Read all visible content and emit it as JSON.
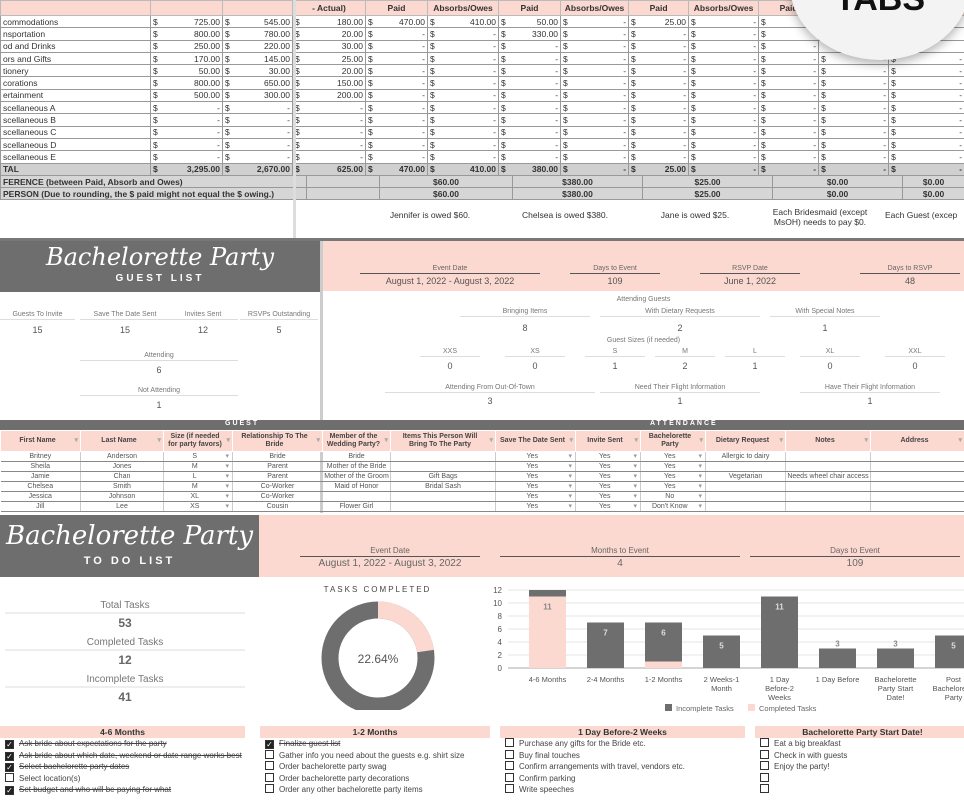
{
  "budget": {
    "headers": [
      "",
      "",
      "",
      "- Actual)",
      "Paid",
      "Absorbs/Owes",
      "Paid",
      "Absorbs/Owes",
      "Paid",
      "Absorbs/Owes",
      "Paid",
      "",
      ""
    ],
    "rows": [
      [
        "commodations",
        "725.00",
        "545.00",
        "180.00",
        "470.00",
        "410.00",
        "50.00",
        "-",
        "25.00",
        "-",
        "-",
        "",
        ""
      ],
      [
        "nsportation",
        "800.00",
        "780.00",
        "20.00",
        "-",
        "-",
        "330.00",
        "-",
        "-",
        "-",
        "-",
        "",
        ""
      ],
      [
        "od and Drinks",
        "250.00",
        "220.00",
        "30.00",
        "-",
        "-",
        "-",
        "-",
        "-",
        "-",
        "-",
        "",
        ""
      ],
      [
        "ors and Gifts",
        "170.00",
        "145.00",
        "25.00",
        "-",
        "-",
        "-",
        "-",
        "-",
        "-",
        "-",
        "-",
        "-"
      ],
      [
        "tionery",
        "50.00",
        "30.00",
        "20.00",
        "-",
        "-",
        "-",
        "-",
        "-",
        "-",
        "-",
        "-",
        "-"
      ],
      [
        "corations",
        "800.00",
        "650.00",
        "150.00",
        "-",
        "-",
        "-",
        "-",
        "-",
        "-",
        "-",
        "-",
        "-"
      ],
      [
        "ertainment",
        "500.00",
        "300.00",
        "200.00",
        "-",
        "-",
        "-",
        "-",
        "-",
        "-",
        "-",
        "-",
        "-"
      ],
      [
        "scellaneous A",
        "-",
        "-",
        "-",
        "-",
        "-",
        "-",
        "-",
        "-",
        "-",
        "-",
        "-",
        "-"
      ],
      [
        "scellaneous B",
        "-",
        "-",
        "-",
        "-",
        "-",
        "-",
        "-",
        "-",
        "-",
        "-",
        "-",
        "-"
      ],
      [
        "scellaneous C",
        "-",
        "-",
        "-",
        "-",
        "-",
        "-",
        "-",
        "-",
        "-",
        "-",
        "-",
        "-"
      ],
      [
        "scellaneous D",
        "-",
        "-",
        "-",
        "-",
        "-",
        "-",
        "-",
        "-",
        "-",
        "-",
        "-",
        "-"
      ],
      [
        "scellaneous E",
        "-",
        "-",
        "-",
        "-",
        "-",
        "-",
        "-",
        "-",
        "-",
        "-",
        "-",
        "-"
      ]
    ],
    "total": [
      "TAL",
      "3,295.00",
      "2,670.00",
      "625.00",
      "470.00",
      "410.00",
      "380.00",
      "-",
      "25.00",
      "-",
      "-",
      "-",
      "-"
    ],
    "difference": {
      "label": "FERENCE (between Paid, Absorb and Owes)",
      "values": [
        "$60.00",
        "$380.00",
        "$25.00",
        "$0.00",
        "$0.00"
      ]
    },
    "per_person": {
      "label": "PERSON (Due to rounding, the $ paid might not equal the $ owing.)",
      "values": [
        "$60.00",
        "$380.00",
        "$25.00",
        "$0.00",
        "$0.00"
      ]
    },
    "owed": [
      "Jennifer is owed $60.",
      "Chelsea is owed $380.",
      "Jane is owed $25.",
      "Each Bridesmaid (except MsOH) needs to pay $0.",
      "Each Guest (excep"
    ]
  },
  "badge": {
    "text": "TABS"
  },
  "guest_list": {
    "title": "Bachelorette Party",
    "subtitle": "GUEST LIST",
    "stats": [
      {
        "label": "Guests To Invite",
        "value": "15"
      },
      {
        "label": "Save The Date Sent",
        "value": "15"
      },
      {
        "label": "Invites Sent",
        "value": "12"
      },
      {
        "label": "RSVPs Outstanding",
        "value": "5"
      }
    ],
    "attending": {
      "label": "Attending",
      "value": "6"
    },
    "not_attending": {
      "label": "Not Attending",
      "value": "1"
    },
    "event": [
      {
        "label": "Event Date",
        "value": "August 1, 2022 - August 3, 2022"
      },
      {
        "label": "Days to Event",
        "value": "109"
      },
      {
        "label": "RSVP Date",
        "value": "June 1, 2022"
      },
      {
        "label": "Days to RSVP",
        "value": "48"
      }
    ],
    "attending_guests_title": "Attending Guests",
    "attending_guests": [
      {
        "label": "Bringing Items",
        "value": "8"
      },
      {
        "label": "With Dietary Requests",
        "value": "2"
      },
      {
        "label": "With Special Notes",
        "value": "1"
      }
    ],
    "sizes_title": "Guest Sizes (if needed)",
    "sizes": [
      {
        "label": "XXS",
        "value": "0"
      },
      {
        "label": "XS",
        "value": "0"
      },
      {
        "label": "S",
        "value": "1"
      },
      {
        "label": "M",
        "value": "2"
      },
      {
        "label": "L",
        "value": "1"
      },
      {
        "label": "XL",
        "value": "0"
      },
      {
        "label": "XXL",
        "value": "0"
      }
    ],
    "travel": [
      {
        "label": "Attending From Out-Of-Town",
        "value": "3"
      },
      {
        "label": "Need Their Flight Information",
        "value": "1"
      },
      {
        "label": "Have Their Flight Information",
        "value": "1"
      }
    ],
    "guest_section": "GUEST",
    "attendance_section": "ATTENDANCE",
    "columns": [
      "First Name",
      "Last Name",
      "Size (if needed for party favors)",
      "Relationship To The Bride",
      "Member of the Wedding Party?",
      "Items This Person Will Bring To The Party",
      "Save The Date Sent",
      "Invite Sent",
      "Bachelorette Party",
      "Dietary Request",
      "Notes",
      "Address"
    ],
    "rows": [
      [
        "Britney",
        "Anderson",
        "S",
        "Bride",
        "Bride",
        "",
        "Yes",
        "Yes",
        "Yes",
        "Allergic to dairy",
        "",
        ""
      ],
      [
        "Sheila",
        "Jones",
        "M",
        "Parent",
        "Mother of the Bride",
        "",
        "Yes",
        "Yes",
        "Yes",
        "",
        "",
        ""
      ],
      [
        "Jamie",
        "Chan",
        "L",
        "Parent",
        "Mother of the Groom",
        "Gift Bags",
        "Yes",
        "Yes",
        "Yes",
        "Vegetarian",
        "Needs wheel chair access",
        ""
      ],
      [
        "Chelsea",
        "Smith",
        "M",
        "Co-Worker",
        "Maid of Honor",
        "Bridal Sash",
        "Yes",
        "Yes",
        "Yes",
        "",
        "",
        ""
      ],
      [
        "Jessica",
        "Johnson",
        "XL",
        "Co-Worker",
        "",
        "",
        "Yes",
        "Yes",
        "No",
        "",
        "",
        ""
      ],
      [
        "Jill",
        "Lee",
        "XS",
        "Cousin",
        "Flower Girl",
        "",
        "Yes",
        "Yes",
        "Don't Know",
        "",
        "",
        ""
      ]
    ]
  },
  "todo": {
    "title": "Bachelorette Party",
    "subtitle": "TO DO LIST",
    "event": [
      {
        "label": "Event Date",
        "value": "August 1, 2022 - August 3, 2022"
      },
      {
        "label": "Months to Event",
        "value": "4"
      },
      {
        "label": "Days to Event",
        "value": "109"
      }
    ],
    "stats": [
      {
        "label": "Total Tasks",
        "value": "53"
      },
      {
        "label": "Completed Tasks",
        "value": "12"
      },
      {
        "label": "Incomplete Tasks",
        "value": "41"
      }
    ],
    "donut": {
      "title": "TASKS COMPLETED",
      "value_label": "22.64%",
      "percent": 22.64,
      "colors": {
        "completed": "#fbd9d0",
        "incomplete": "#6e6e6e"
      }
    },
    "lists": [
      {
        "title": "4-6 Months",
        "items": [
          {
            "text": "Ask bride about expectations for the party",
            "done": true
          },
          {
            "text": "Ask bride about which date, weekend or date range works best",
            "done": true
          },
          {
            "text": "Select bachelorette party dates",
            "done": true
          },
          {
            "text": "Select location(s)",
            "done": false
          },
          {
            "text": "Set budget and who will be paying for what",
            "done": true
          }
        ]
      },
      {
        "title": "1-2 Months",
        "items": [
          {
            "text": "Finalize guest list",
            "done": true
          },
          {
            "text": "Gather info you need about the guests e.g. shirt size",
            "done": false
          },
          {
            "text": "Order bachelorette party swag",
            "done": false
          },
          {
            "text": "Order bachelorette party decorations",
            "done": false
          },
          {
            "text": "Order any other bachelorette party items",
            "done": false
          }
        ]
      },
      {
        "title": "1 Day Before-2 Weeks",
        "items": [
          {
            "text": "Purchase any gifts for the Bride etc.",
            "done": false
          },
          {
            "text": "Buy final touches",
            "done": false
          },
          {
            "text": "Confirm arrangements with travel, vendors etc.",
            "done": false
          },
          {
            "text": "Confirm parking",
            "done": false
          },
          {
            "text": "Write speeches",
            "done": false
          }
        ]
      },
      {
        "title": "Bachelorette Party Start Date!",
        "items": [
          {
            "text": "Eat a big breakfast",
            "done": false
          },
          {
            "text": "Check in with guests",
            "done": false
          },
          {
            "text": "Enjoy the party!",
            "done": false
          },
          {
            "text": "",
            "done": false
          },
          {
            "text": "",
            "done": false
          }
        ]
      }
    ]
  },
  "chart_data": {
    "type": "bar",
    "stacked": true,
    "categories": [
      "4-6 Months",
      "2-4 Months",
      "1-2 Months",
      "2 Weeks-1 Month",
      "1 Day Before-2 Weeks",
      "1 Day Before",
      "Bachelorette Party Start Date!",
      "Post Bachelorette Party"
    ],
    "series": [
      {
        "name": "Completed Tasks",
        "color": "#fbd9d0",
        "values": [
          11,
          0,
          1,
          0,
          0,
          0,
          0,
          0
        ]
      },
      {
        "name": "Incomplete Tasks",
        "color": "#6e6e6e",
        "values": [
          1,
          7,
          6,
          5,
          11,
          3,
          3,
          5
        ]
      }
    ],
    "ylim": [
      0,
      12
    ],
    "yticks": [
      0,
      2,
      4,
      6,
      8,
      10,
      12
    ],
    "grid": true,
    "legend": "bottom",
    "legend_entries": [
      "Incomplete Tasks",
      "Completed Tasks"
    ]
  }
}
